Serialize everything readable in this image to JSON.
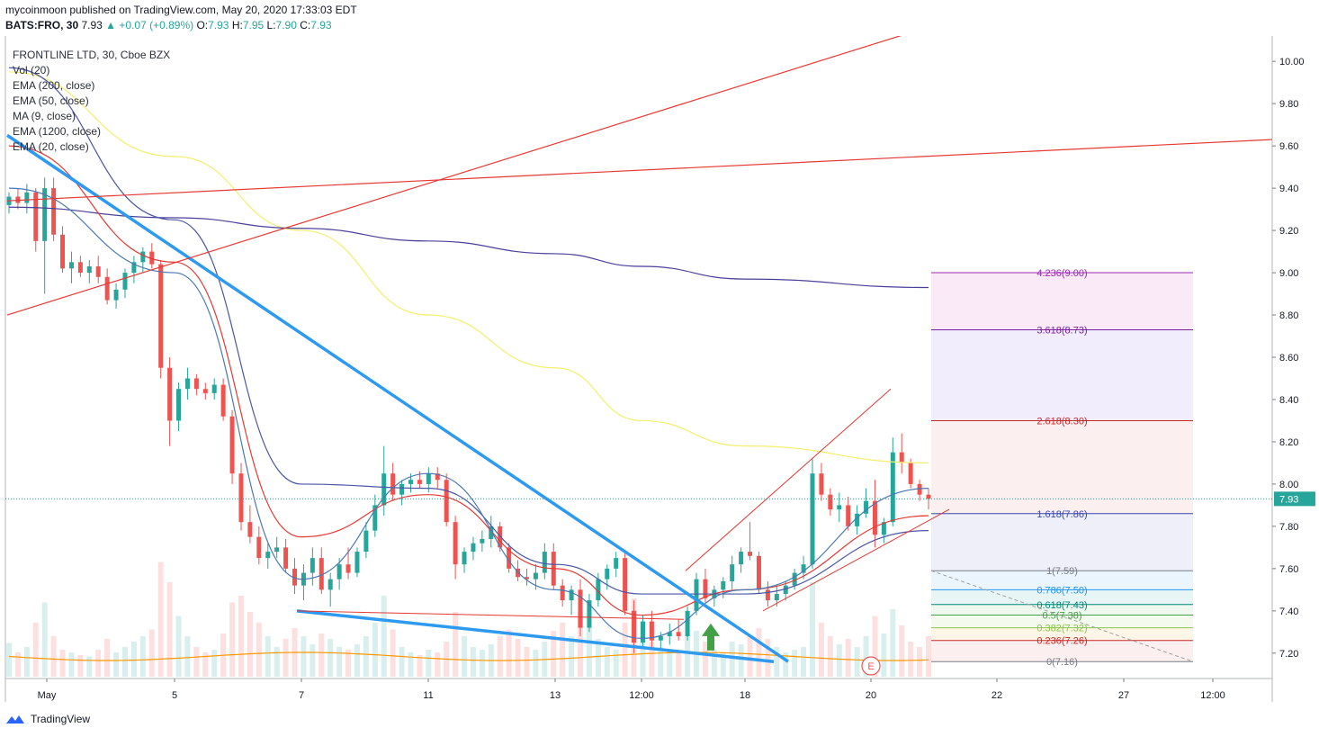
{
  "header": {
    "publisher_line": "mycoinmoon published on TradingView.com, May 20, 2020 17:33:03 EDT",
    "symbol": "BATS:FRO, 30",
    "last": "7.93",
    "change": "▲ +0.07 (+0.89%)",
    "o_label": "O:",
    "o_val": "7.93",
    "h_label": "H:",
    "h_val": "7.95",
    "l_label": "L:",
    "l_val": "7.90",
    "c_label": "C:",
    "c_val": "7.93"
  },
  "legend": {
    "title": "FRONTLINE LTD, 30, Cboe BZX",
    "items": [
      "Vol (20)",
      "EMA (200, close)",
      "EMA (50, close)",
      "MA (9, close)",
      "EMA (1200, close)",
      "EMA (20, close)"
    ]
  },
  "footer": {
    "brand": "TradingView"
  },
  "colors": {
    "bull": "#26a69a",
    "bear": "#ef5350",
    "trend_blue": "#2d9af0",
    "ema200": "#f4ef6e",
    "ema50": "#4a56a6",
    "ema1200": "#4a3f9a",
    "ema20": "#e53935",
    "ma9": "#4a78b5",
    "arrow": "#43a047",
    "redline": "#e53935"
  },
  "chart_data": {
    "type": "line",
    "title": "FRONTLINE LTD, 30, Cboe BZX",
    "ylim": [
      7.08,
      10.12
    ],
    "y_ticks": [
      "10.00",
      "9.80",
      "9.60",
      "9.40",
      "9.20",
      "9.00",
      "8.80",
      "8.60",
      "8.40",
      "8.20",
      "8.00",
      "7.80",
      "7.60",
      "7.40",
      "7.20"
    ],
    "x_ticks": [
      "May",
      "5",
      "7",
      "11",
      "13",
      "12:00",
      "18",
      "20",
      "22",
      "27",
      "12:00"
    ],
    "last_price_label": "7.93",
    "series": [
      {
        "name": "EMA (200, close)",
        "x": [
          "May",
          "5",
          "7",
          "11",
          "13",
          "12:00",
          "18",
          "20"
        ],
        "values": [
          9.95,
          9.55,
          9.2,
          8.8,
          8.55,
          8.3,
          8.18,
          8.1
        ]
      },
      {
        "name": "EMA (1200, close)",
        "x": [
          "May",
          "5",
          "7",
          "11",
          "13",
          "12:00",
          "18",
          "20"
        ],
        "values": [
          9.31,
          9.26,
          9.21,
          9.15,
          9.09,
          9.03,
          8.97,
          8.93
        ]
      },
      {
        "name": "EMA (20, close)",
        "x": [
          "May",
          "5",
          "7",
          "11",
          "13",
          "12:00",
          "18",
          "20"
        ],
        "values": [
          9.6,
          9.05,
          7.75,
          7.95,
          7.6,
          7.38,
          7.5,
          7.85
        ]
      },
      {
        "name": "EMA (50, close)",
        "x": [
          "May",
          "5",
          "7",
          "11",
          "13",
          "12:00",
          "18",
          "20"
        ],
        "values": [
          9.97,
          9.25,
          8.0,
          7.98,
          7.62,
          7.48,
          7.48,
          7.78
        ]
      },
      {
        "name": "MA (9, close)",
        "x": [
          "May",
          "5",
          "7",
          "11",
          "13",
          "12:00",
          "18",
          "20"
        ],
        "values": [
          9.4,
          9.0,
          7.55,
          8.05,
          7.5,
          7.27,
          7.5,
          7.98
        ]
      }
    ],
    "fibonacci": [
      {
        "label": "4.236(9.00)",
        "value": 9.0,
        "color": "#9c27b0"
      },
      {
        "label": "3.618(8.73)",
        "value": 8.73,
        "color": "#7b1fa2"
      },
      {
        "label": "2.618(8.30)",
        "value": 8.3,
        "color": "#c62828"
      },
      {
        "label": "1.618(7.86)",
        "value": 7.86,
        "color": "#3949ab"
      },
      {
        "label": "1(7.59)",
        "value": 7.59,
        "color": "#787b86"
      },
      {
        "label": "0.786(7.50)",
        "value": 7.5,
        "color": "#2196f3"
      },
      {
        "label": "0.618(7.43)",
        "value": 7.43,
        "color": "#00897b"
      },
      {
        "label": "0.5(7.38)",
        "value": 7.38,
        "color": "#43a047"
      },
      {
        "label": "0.382(7.32)",
        "value": 7.32,
        "color": "#8bc34a"
      },
      {
        "label": "0.236(7.26)",
        "value": 7.26,
        "color": "#c62828"
      },
      {
        "label": "0(7.16)",
        "value": 7.16,
        "color": "#787b86"
      }
    ],
    "candles": [
      [
        9.32,
        9.38,
        9.28,
        9.36
      ],
      [
        9.36,
        9.4,
        9.3,
        9.33
      ],
      [
        9.33,
        9.42,
        9.28,
        9.38
      ],
      [
        9.38,
        9.4,
        9.1,
        9.15
      ],
      [
        9.15,
        9.45,
        8.9,
        9.4
      ],
      [
        9.4,
        9.45,
        9.15,
        9.18
      ],
      [
        9.18,
        9.22,
        9.0,
        9.02
      ],
      [
        9.02,
        9.1,
        8.95,
        9.05
      ],
      [
        9.05,
        9.08,
        8.98,
        9.0
      ],
      [
        9.0,
        9.06,
        8.95,
        9.03
      ],
      [
        9.03,
        9.08,
        8.95,
        8.98
      ],
      [
        8.98,
        9.02,
        8.85,
        8.87
      ],
      [
        8.87,
        8.95,
        8.83,
        8.92
      ],
      [
        8.92,
        9.02,
        8.88,
        9.0
      ],
      [
        9.0,
        9.08,
        8.95,
        9.05
      ],
      [
        9.05,
        9.12,
        9.0,
        9.1
      ],
      [
        9.1,
        9.14,
        9.02,
        9.04
      ],
      [
        9.04,
        9.06,
        8.5,
        8.55
      ],
      [
        8.55,
        8.6,
        8.18,
        8.3
      ],
      [
        8.3,
        8.48,
        8.25,
        8.45
      ],
      [
        8.45,
        8.55,
        8.4,
        8.5
      ],
      [
        8.5,
        8.52,
        8.42,
        8.45
      ],
      [
        8.45,
        8.48,
        8.4,
        8.43
      ],
      [
        8.43,
        8.5,
        8.4,
        8.47
      ],
      [
        8.47,
        8.5,
        8.3,
        8.32
      ],
      [
        8.32,
        8.35,
        8.0,
        8.05
      ],
      [
        8.05,
        8.1,
        7.78,
        7.82
      ],
      [
        7.82,
        7.9,
        7.72,
        7.75
      ],
      [
        7.75,
        7.8,
        7.62,
        7.65
      ],
      [
        7.65,
        7.72,
        7.6,
        7.68
      ],
      [
        7.68,
        7.75,
        7.65,
        7.7
      ],
      [
        7.7,
        7.74,
        7.58,
        7.6
      ],
      [
        7.6,
        7.65,
        7.48,
        7.52
      ],
      [
        7.52,
        7.62,
        7.45,
        7.58
      ],
      [
        7.58,
        7.7,
        7.52,
        7.65
      ],
      [
        7.65,
        7.7,
        7.48,
        7.5
      ],
      [
        7.5,
        7.58,
        7.42,
        7.55
      ],
      [
        7.55,
        7.65,
        7.5,
        7.62
      ],
      [
        7.62,
        7.7,
        7.55,
        7.58
      ],
      [
        7.58,
        7.7,
        7.56,
        7.68
      ],
      [
        7.68,
        7.82,
        7.65,
        7.78
      ],
      [
        7.78,
        7.95,
        7.75,
        7.9
      ],
      [
        7.9,
        8.18,
        7.85,
        8.05
      ],
      [
        8.05,
        8.1,
        7.92,
        7.95
      ],
      [
        7.95,
        8.02,
        7.9,
        8.0
      ],
      [
        8.0,
        8.05,
        7.96,
        8.02
      ],
      [
        8.02,
        8.06,
        7.98,
        8.0
      ],
      [
        8.0,
        8.08,
        7.96,
        8.05
      ],
      [
        8.05,
        8.08,
        7.98,
        8.02
      ],
      [
        8.02,
        8.05,
        7.8,
        7.82
      ],
      [
        7.82,
        7.85,
        7.55,
        7.62
      ],
      [
        7.62,
        7.7,
        7.58,
        7.68
      ],
      [
        7.68,
        7.75,
        7.64,
        7.72
      ],
      [
        7.72,
        7.78,
        7.68,
        7.74
      ],
      [
        7.74,
        7.85,
        7.7,
        7.8
      ],
      [
        7.8,
        7.82,
        7.68,
        7.7
      ],
      [
        7.7,
        7.72,
        7.58,
        7.6
      ],
      [
        7.6,
        7.64,
        7.54,
        7.56
      ],
      [
        7.56,
        7.6,
        7.52,
        7.55
      ],
      [
        7.55,
        7.62,
        7.5,
        7.58
      ],
      [
        7.58,
        7.72,
        7.55,
        7.68
      ],
      [
        7.68,
        7.72,
        7.5,
        7.52
      ],
      [
        7.52,
        7.55,
        7.42,
        7.45
      ],
      [
        7.45,
        7.52,
        7.38,
        7.5
      ],
      [
        7.5,
        7.55,
        7.28,
        7.32
      ],
      [
        7.32,
        7.48,
        7.3,
        7.45
      ],
      [
        7.45,
        7.58,
        7.42,
        7.55
      ],
      [
        7.55,
        7.62,
        7.5,
        7.6
      ],
      [
        7.6,
        7.68,
        7.56,
        7.65
      ],
      [
        7.65,
        7.68,
        7.38,
        7.4
      ],
      [
        7.4,
        7.45,
        7.2,
        7.25
      ],
      [
        7.25,
        7.38,
        7.22,
        7.35
      ],
      [
        7.35,
        7.4,
        7.22,
        7.26
      ],
      [
        7.26,
        7.3,
        7.22,
        7.28
      ],
      [
        7.28,
        7.34,
        7.24,
        7.3
      ],
      [
        7.3,
        7.36,
        7.26,
        7.28
      ],
      [
        7.28,
        7.42,
        7.26,
        7.4
      ],
      [
        7.4,
        7.58,
        7.38,
        7.55
      ],
      [
        7.55,
        7.6,
        7.44,
        7.46
      ],
      [
        7.46,
        7.52,
        7.42,
        7.5
      ],
      [
        7.5,
        7.56,
        7.46,
        7.54
      ],
      [
        7.54,
        7.66,
        7.5,
        7.62
      ],
      [
        7.62,
        7.7,
        7.58,
        7.68
      ],
      [
        7.68,
        7.82,
        7.64,
        7.66
      ],
      [
        7.66,
        7.68,
        7.48,
        7.5
      ],
      [
        7.5,
        7.54,
        7.42,
        7.45
      ],
      [
        7.45,
        7.52,
        7.42,
        7.48
      ],
      [
        7.48,
        7.54,
        7.45,
        7.52
      ],
      [
        7.52,
        7.6,
        7.5,
        7.58
      ],
      [
        7.58,
        7.66,
        7.55,
        7.62
      ],
      [
        7.62,
        8.12,
        7.6,
        8.05
      ],
      [
        8.05,
        8.1,
        7.92,
        7.95
      ],
      [
        7.95,
        7.98,
        7.85,
        7.88
      ],
      [
        7.88,
        7.96,
        7.82,
        7.9
      ],
      [
        7.9,
        7.94,
        7.78,
        7.8
      ],
      [
        7.8,
        7.9,
        7.76,
        7.86
      ],
      [
        7.86,
        7.98,
        7.84,
        7.92
      ],
      [
        7.92,
        8.02,
        7.7,
        7.76
      ],
      [
        7.76,
        7.84,
        7.72,
        7.82
      ],
      [
        7.82,
        8.22,
        7.8,
        8.15
      ],
      [
        8.15,
        8.24,
        8.05,
        8.1
      ],
      [
        8.1,
        8.12,
        7.98,
        8.0
      ],
      [
        8.0,
        8.02,
        7.92,
        7.95
      ],
      [
        7.95,
        7.98,
        7.88,
        7.93
      ]
    ],
    "volumes": [
      25,
      18,
      22,
      40,
      55,
      30,
      20,
      18,
      16,
      15,
      20,
      28,
      18,
      22,
      26,
      30,
      35,
      85,
      70,
      45,
      30,
      22,
      18,
      20,
      32,
      55,
      60,
      48,
      40,
      30,
      22,
      28,
      36,
      30,
      24,
      32,
      28,
      22,
      20,
      24,
      30,
      40,
      60,
      35,
      22,
      18,
      16,
      20,
      18,
      26,
      48,
      30,
      22,
      20,
      24,
      30,
      35,
      28,
      22,
      20,
      26,
      34,
      40,
      30,
      48,
      36,
      28,
      22,
      20,
      40,
      58,
      30,
      26,
      22,
      20,
      18,
      30,
      34,
      26,
      20,
      18,
      26,
      24,
      30,
      36,
      28,
      22,
      18,
      20,
      22,
      70,
      40,
      30,
      24,
      28,
      22,
      30,
      45,
      32,
      50,
      38,
      26,
      22,
      30
    ]
  }
}
